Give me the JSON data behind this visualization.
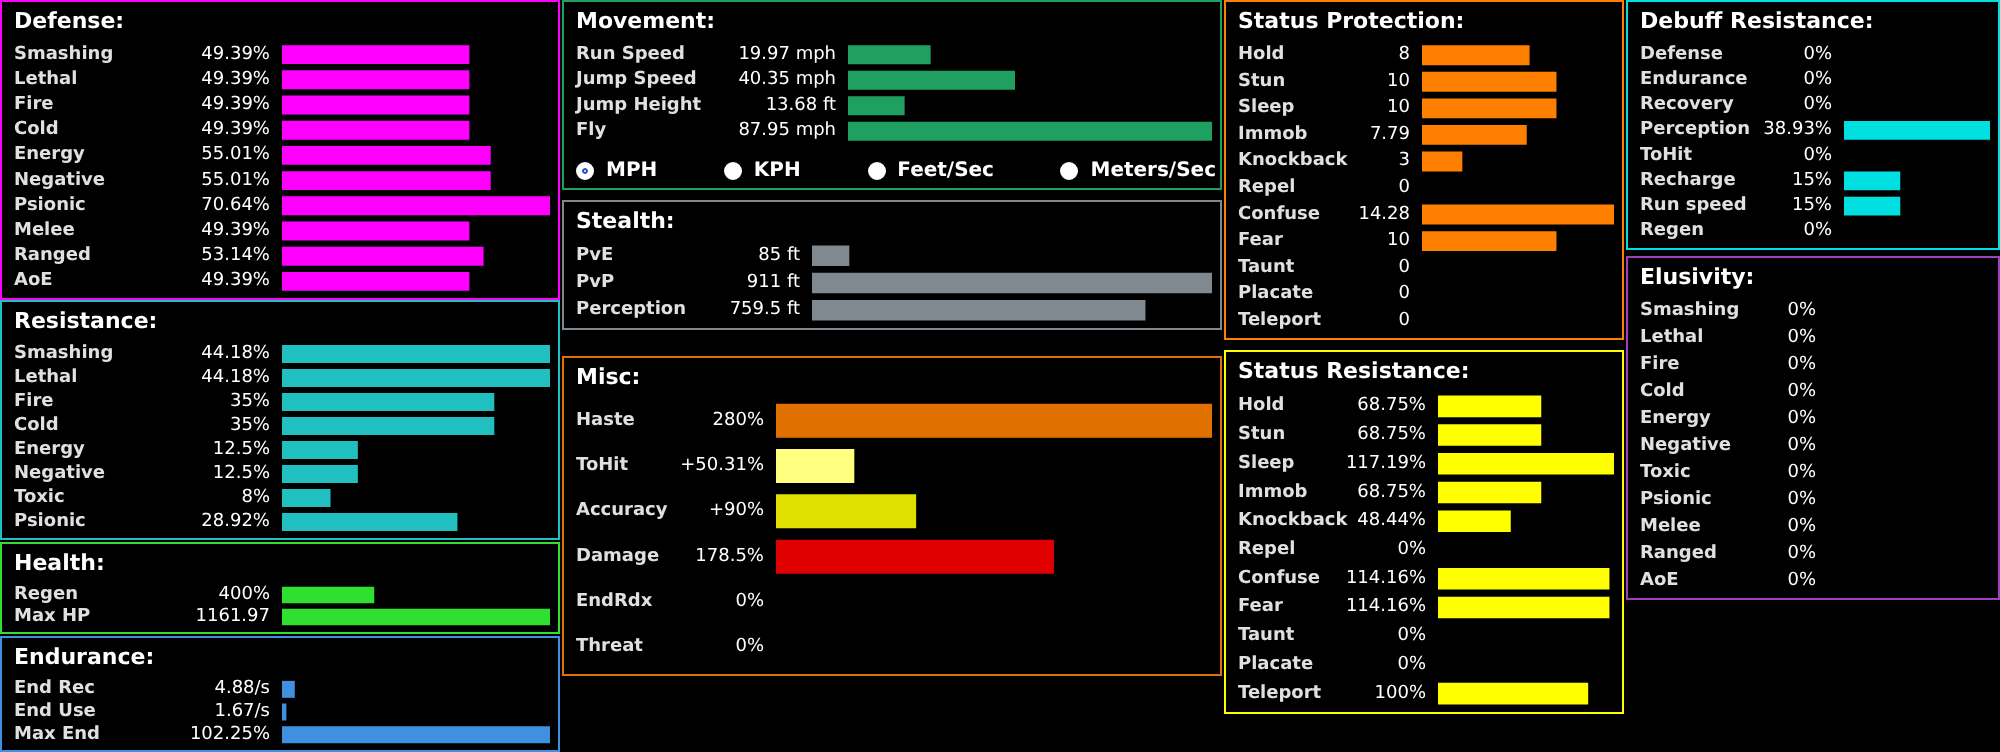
{
  "chart_data": [
    {
      "type": "bar",
      "orientation": "horizontal",
      "title": "Defense:",
      "color": "#ff00ff",
      "categories": [
        "Smashing",
        "Lethal",
        "Fire",
        "Cold",
        "Energy",
        "Negative",
        "Psionic",
        "Melee",
        "Ranged",
        "AoE"
      ],
      "values": [
        49.39,
        49.39,
        49.39,
        49.39,
        55.01,
        55.01,
        70.64,
        49.39,
        53.14,
        49.39
      ],
      "value_labels": [
        "49.39%",
        "49.39%",
        "49.39%",
        "49.39%",
        "55.01%",
        "55.01%",
        "70.64%",
        "49.39%",
        "53.14%",
        "49.39%"
      ]
    },
    {
      "type": "bar",
      "orientation": "horizontal",
      "title": "Resistance:",
      "color": "#20c0c0",
      "categories": [
        "Smashing",
        "Lethal",
        "Fire",
        "Cold",
        "Energy",
        "Negative",
        "Toxic",
        "Psionic"
      ],
      "values": [
        44.18,
        44.18,
        35,
        35,
        12.5,
        12.5,
        8,
        28.92
      ],
      "value_labels": [
        "44.18%",
        "44.18%",
        "35%",
        "35%",
        "12.5%",
        "12.5%",
        "8%",
        "28.92%"
      ]
    },
    {
      "type": "bar",
      "orientation": "horizontal",
      "title": "Health:",
      "color": "#30e030",
      "categories": [
        "Regen",
        "Max HP"
      ],
      "values": [
        400,
        1161.97
      ],
      "value_labels": [
        "400%",
        "1161.97"
      ]
    },
    {
      "type": "bar",
      "orientation": "horizontal",
      "title": "Endurance:",
      "color": "#4090e0",
      "categories": [
        "End Rec",
        "End Use",
        "Max End"
      ],
      "values": [
        4.88,
        1.67,
        102.25
      ],
      "value_labels": [
        "4.88/s",
        "1.67/s",
        "102.25%"
      ]
    },
    {
      "type": "bar",
      "orientation": "horizontal",
      "title": "Movement:",
      "color": "#20a060",
      "categories": [
        "Run Speed",
        "Jump Speed",
        "Jump Height",
        "Fly"
      ],
      "values": [
        19.97,
        40.35,
        13.68,
        87.95
      ],
      "value_labels": [
        "19.97 mph",
        "40.35 mph",
        "13.68 ft",
        "87.95 mph"
      ],
      "annotations": [
        "MPH",
        "KPH",
        "Feet/Sec",
        "Meters/Sec"
      ]
    },
    {
      "type": "bar",
      "orientation": "horizontal",
      "title": "Stealth:",
      "color": "#808890",
      "categories": [
        "PvE",
        "PvP",
        "Perception"
      ],
      "values": [
        85,
        911,
        759.5
      ],
      "value_labels": [
        "85 ft",
        "911 ft",
        "759.5 ft"
      ]
    },
    {
      "type": "bar",
      "orientation": "horizontal",
      "title": "Misc:",
      "colors": [
        "#e07000",
        "#ffff80",
        "#e0e000",
        "#e00000",
        "#6040a0",
        "#6040a0"
      ],
      "categories": [
        "Haste",
        "ToHit",
        "Accuracy",
        "Damage",
        "EndRdx",
        "Threat"
      ],
      "values": [
        280,
        50.31,
        90,
        178.5,
        0,
        0
      ],
      "value_labels": [
        "280%",
        "+50.31%",
        "+90%",
        "178.5%",
        "0%",
        "0%"
      ]
    },
    {
      "type": "bar",
      "orientation": "horizontal",
      "title": "Status Protection:",
      "color": "#ff8000",
      "categories": [
        "Hold",
        "Stun",
        "Sleep",
        "Immob",
        "Knockback",
        "Repel",
        "Confuse",
        "Fear",
        "Taunt",
        "Placate",
        "Teleport"
      ],
      "values": [
        8,
        10,
        10,
        7.79,
        3,
        0,
        14.28,
        10,
        0,
        0,
        0
      ],
      "value_labels": [
        "8",
        "10",
        "10",
        "7.79",
        "3",
        "0",
        "14.28",
        "10",
        "0",
        "0",
        "0"
      ]
    },
    {
      "type": "bar",
      "orientation": "horizontal",
      "title": "Status Resistance:",
      "color": "#ffff00",
      "categories": [
        "Hold",
        "Stun",
        "Sleep",
        "Immob",
        "Knockback",
        "Repel",
        "Confuse",
        "Fear",
        "Taunt",
        "Placate",
        "Teleport"
      ],
      "values": [
        68.75,
        68.75,
        117.19,
        68.75,
        48.44,
        0,
        114.16,
        114.16,
        0,
        0,
        100
      ],
      "value_labels": [
        "68.75%",
        "68.75%",
        "117.19%",
        "68.75%",
        "48.44%",
        "0%",
        "114.16%",
        "114.16%",
        "0%",
        "0%",
        "100%"
      ]
    },
    {
      "type": "bar",
      "orientation": "horizontal",
      "title": "Debuff Resistance:",
      "color": "#00e0e0",
      "categories": [
        "Defense",
        "Endurance",
        "Recovery",
        "Perception",
        "ToHit",
        "Recharge",
        "Run speed",
        "Regen"
      ],
      "values": [
        0,
        0,
        0,
        38.93,
        0,
        15,
        15,
        0
      ],
      "value_labels": [
        "0%",
        "0%",
        "0%",
        "38.93%",
        "0%",
        "15%",
        "15%",
        "0%"
      ]
    },
    {
      "type": "other",
      "title": "Elusivity:",
      "color": "#a040c0",
      "categories": [
        "Smashing",
        "Lethal",
        "Fire",
        "Cold",
        "Energy",
        "Negative",
        "Toxic",
        "Psionic",
        "Melee",
        "Ranged",
        "AoE"
      ],
      "values": [
        0,
        0,
        0,
        0,
        0,
        0,
        0,
        0,
        0,
        0,
        0
      ],
      "value_labels": [
        "0%",
        "0%",
        "0%",
        "0%",
        "0%",
        "0%",
        "0%",
        "0%",
        "0%",
        "0%",
        "0%"
      ]
    }
  ]
}
